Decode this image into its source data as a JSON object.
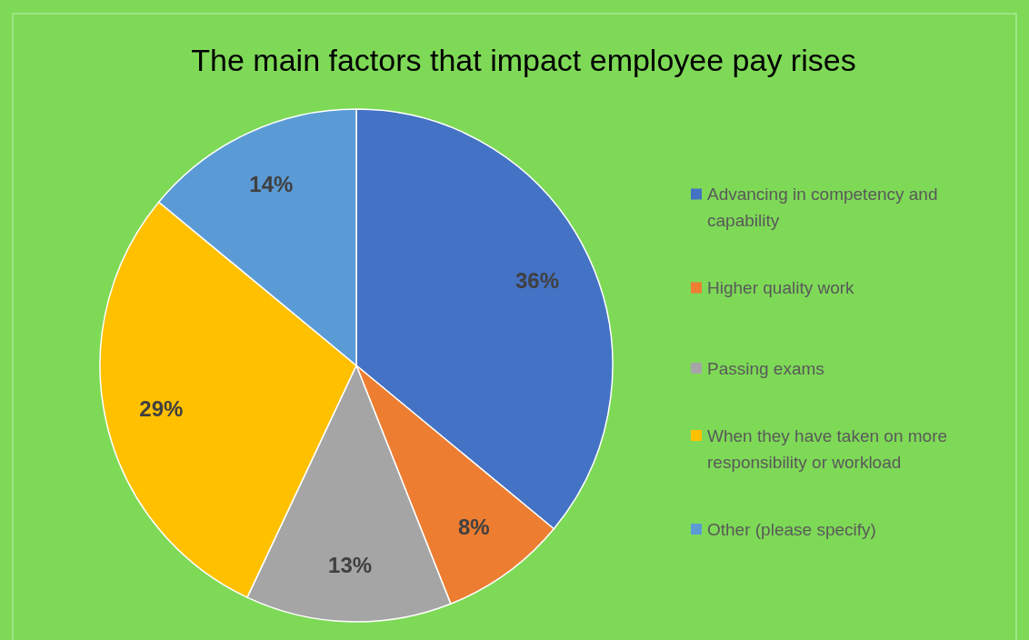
{
  "chart_data": {
    "type": "pie",
    "title": "The main factors that impact employee pay rises",
    "categories": [
      "Advancing in competency and capability",
      "Higher quality work",
      "Passing exams",
      "When they have taken on more responsibility or workload",
      "Other (please specify)"
    ],
    "values": [
      36,
      8,
      13,
      29,
      14
    ],
    "colors": [
      "#4472c4",
      "#ed7d31",
      "#a5a5a5",
      "#ffc000",
      "#5b9bd5"
    ],
    "value_labels": [
      "36%",
      "8%",
      "13%",
      "29%",
      "14%"
    ],
    "legend": "right"
  }
}
